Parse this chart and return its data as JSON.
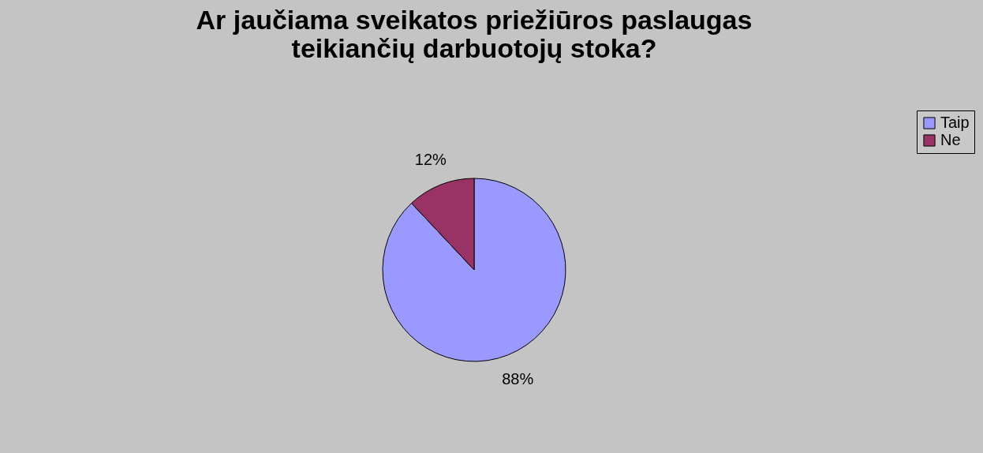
{
  "chart_data": {
    "type": "pie",
    "title": [
      "Ar jaučiama sveikatos priežiūros paslaugas",
      "teikiančių darbuotojų stoka?"
    ],
    "categories": [
      "Taip",
      "Ne"
    ],
    "values": [
      88,
      12
    ],
    "colors": [
      "#9999ff",
      "#993366"
    ],
    "value_labels": [
      "88%",
      "12%"
    ],
    "legend": "right"
  }
}
